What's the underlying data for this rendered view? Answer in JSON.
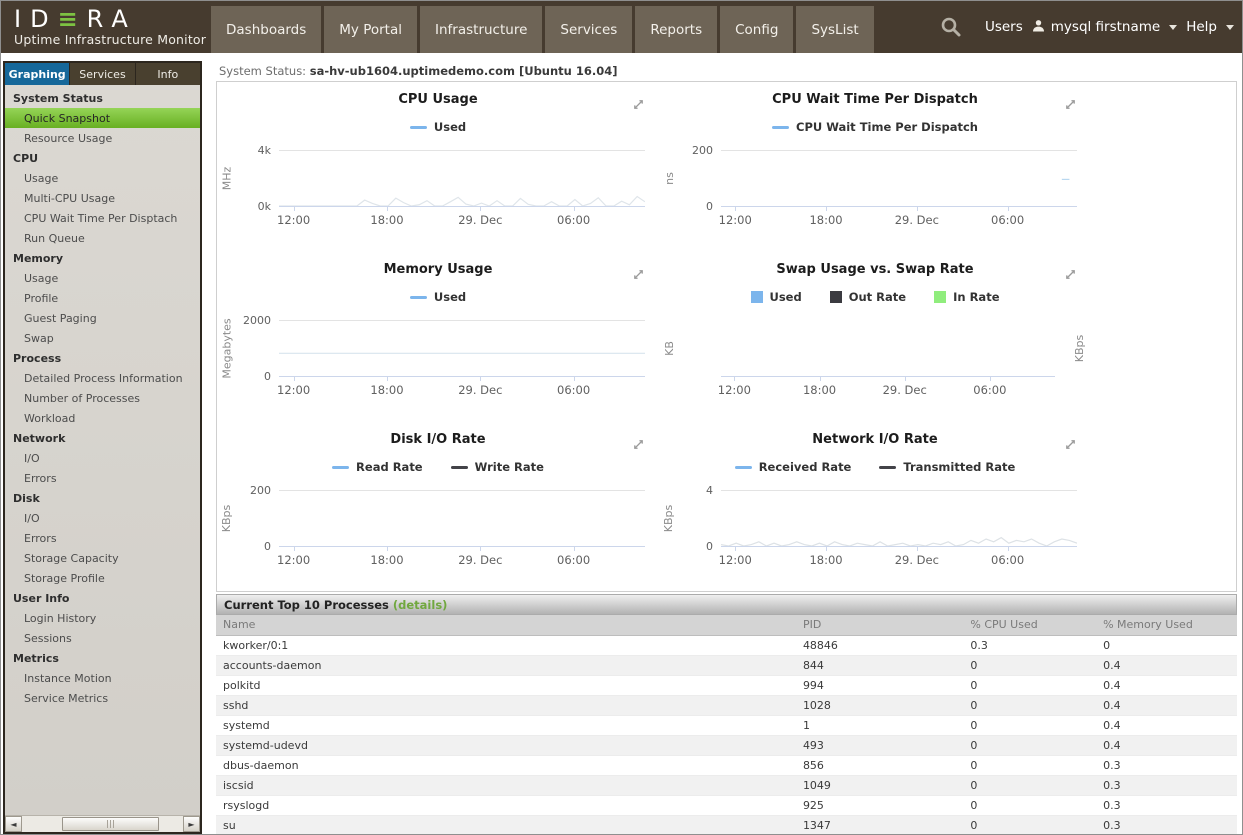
{
  "header": {
    "logo": {
      "brand": "IDERA",
      "subtitle": "Uptime Infrastructure Monitor"
    },
    "nav": [
      "Dashboards",
      "My Portal",
      "Infrastructure",
      "Services",
      "Reports",
      "Config",
      "SysList"
    ],
    "right": {
      "users_label": "Users",
      "user_name": "mysql firstname",
      "help_label": "Help"
    }
  },
  "sidebar": {
    "tabs": [
      {
        "label": "Graphing",
        "active": true
      },
      {
        "label": "Services",
        "active": false
      },
      {
        "label": "Info",
        "active": false
      }
    ],
    "sections": [
      {
        "title": "System Status",
        "items": [
          {
            "label": "Quick Snapshot",
            "selected": true
          },
          {
            "label": "Resource Usage"
          }
        ]
      },
      {
        "title": "CPU",
        "items": [
          {
            "label": "Usage"
          },
          {
            "label": "Multi-CPU Usage"
          },
          {
            "label": "CPU Wait Time Per Disptach"
          },
          {
            "label": "Run Queue"
          }
        ]
      },
      {
        "title": "Memory",
        "items": [
          {
            "label": "Usage"
          },
          {
            "label": "Profile"
          },
          {
            "label": "Guest Paging"
          },
          {
            "label": "Swap"
          }
        ]
      },
      {
        "title": "Process",
        "items": [
          {
            "label": "Detailed Process Information"
          },
          {
            "label": "Number of Processes"
          },
          {
            "label": "Workload"
          }
        ]
      },
      {
        "title": "Network",
        "items": [
          {
            "label": "I/O"
          },
          {
            "label": "Errors"
          }
        ]
      },
      {
        "title": "Disk",
        "items": [
          {
            "label": "I/O"
          },
          {
            "label": "Errors"
          },
          {
            "label": "Storage Capacity"
          },
          {
            "label": "Storage Profile"
          }
        ]
      },
      {
        "title": "User Info",
        "items": [
          {
            "label": "Login History"
          },
          {
            "label": "Sessions"
          }
        ]
      },
      {
        "title": "Metrics",
        "items": [
          {
            "label": "Instance Motion"
          },
          {
            "label": "Service Metrics"
          }
        ]
      }
    ]
  },
  "main": {
    "status_label": "System Status:",
    "status_value": "sa-hv-ub1604.uptimedemo.com [Ubuntu 16.04]"
  },
  "chart_data": [
    {
      "type": "line",
      "title": "CPU Usage",
      "ylabel": "MHz",
      "yticks": [
        "4k",
        "0k"
      ],
      "ylim": [
        0,
        4000
      ],
      "xticks": [
        "12:00",
        "18:00",
        "29. Dec",
        "06:00"
      ],
      "grid_top": true,
      "legend": [
        {
          "label": "Used",
          "color": "#7cb5ec",
          "marker": "line"
        }
      ],
      "series": [
        {
          "name": "Used",
          "color": "#7cb5ec",
          "render_color": "#dfe5ea",
          "values": [
            0,
            0,
            0,
            0,
            0,
            0,
            0,
            0,
            0,
            0,
            0,
            420,
            180,
            0,
            0,
            560,
            240,
            0,
            90,
            380,
            0,
            0,
            300,
            620,
            140,
            0,
            210,
            0,
            380,
            0,
            0,
            540,
            120,
            0,
            0,
            310,
            0,
            0,
            460,
            0,
            180,
            590,
            0,
            0,
            340,
            90,
            680,
            300
          ]
        }
      ]
    },
    {
      "type": "line",
      "title": "CPU Wait Time Per Dispatch",
      "ylabel": "ns",
      "yticks": [
        "200",
        "0"
      ],
      "ylim": [
        0,
        200
      ],
      "xticks": [
        "12:00",
        "18:00",
        "29. Dec",
        "06:00"
      ],
      "grid_top": true,
      "legend": [
        {
          "label": "CPU Wait Time Per Dispatch",
          "color": "#7cb5ec",
          "marker": "line"
        }
      ],
      "series": [
        {
          "name": "CPU Wait Time Per Dispatch",
          "color": "#7cb5ec",
          "render_color": "#b9d8f0",
          "values": [
            null,
            null,
            null,
            null,
            null,
            null,
            null,
            null,
            null,
            null,
            null,
            null,
            null,
            null,
            null,
            null,
            null,
            null,
            null,
            null,
            null,
            null,
            null,
            null,
            null,
            null,
            null,
            null,
            null,
            null,
            null,
            null,
            null,
            null,
            null,
            null,
            null,
            null,
            null,
            null,
            null,
            null,
            null,
            null,
            null,
            95,
            95,
            null
          ]
        }
      ]
    },
    {
      "type": "line",
      "title": "Memory Usage",
      "ylabel": "Megabytes",
      "yticks": [
        "2000",
        "0"
      ],
      "ylim": [
        0,
        2000
      ],
      "xticks": [
        "12:00",
        "18:00",
        "29. Dec",
        "06:00"
      ],
      "grid_top": true,
      "legend": [
        {
          "label": "Used",
          "color": "#7cb5ec",
          "marker": "line"
        }
      ],
      "series": [
        {
          "name": "Used",
          "color": "#7cb5ec",
          "render_color": "#d8e4ee",
          "values": [
            810,
            810
          ]
        }
      ]
    },
    {
      "type": "area",
      "title": "Swap Usage vs. Swap Rate",
      "ylabel": "KB",
      "ylabel_right": "KBps",
      "yticks": [],
      "ylim": [
        0,
        1
      ],
      "xticks": [
        "12:00",
        "18:00",
        "29. Dec",
        "06:00"
      ],
      "grid_top": false,
      "legend": [
        {
          "label": "Used",
          "color": "#7cb5ec",
          "marker": "square"
        },
        {
          "label": "Out Rate",
          "color": "#3b3b40",
          "marker": "square"
        },
        {
          "label": "In Rate",
          "color": "#90ed7d",
          "marker": "square"
        }
      ],
      "series": [
        {
          "name": "Used",
          "color": "#7cb5ec",
          "values": []
        },
        {
          "name": "Out Rate",
          "color": "#3b3b40",
          "values": []
        },
        {
          "name": "In Rate",
          "color": "#90ed7d",
          "values": []
        }
      ]
    },
    {
      "type": "line",
      "title": "Disk I/O Rate",
      "ylabel": "KBps",
      "yticks": [
        "200",
        "0"
      ],
      "ylim": [
        0,
        200
      ],
      "xticks": [
        "12:00",
        "18:00",
        "29. Dec",
        "06:00"
      ],
      "grid_top": true,
      "legend": [
        {
          "label": "Read Rate",
          "color": "#7cb5ec",
          "marker": "line"
        },
        {
          "label": "Write Rate",
          "color": "#434348",
          "marker": "line"
        }
      ],
      "series": [
        {
          "name": "Read Rate",
          "color": "#7cb5ec",
          "values": []
        },
        {
          "name": "Write Rate",
          "color": "#434348",
          "values": []
        }
      ]
    },
    {
      "type": "line",
      "title": "Network I/O Rate",
      "ylabel": "KBps",
      "yticks": [
        "4",
        "0"
      ],
      "ylim": [
        0,
        4
      ],
      "xticks": [
        "12:00",
        "18:00",
        "29. Dec",
        "06:00"
      ],
      "grid_top": true,
      "legend": [
        {
          "label": "Received Rate",
          "color": "#7cb5ec",
          "marker": "line"
        },
        {
          "label": "Transmitted Rate",
          "color": "#434348",
          "marker": "line"
        }
      ],
      "series": [
        {
          "name": "Received Rate",
          "color": "#7cb5ec",
          "render_color": "#dde2e6",
          "values": [
            0.1,
            0,
            0.2,
            0,
            0.1,
            0.3,
            0,
            0.2,
            0,
            0.1,
            0.3,
            0.1,
            0,
            0.2,
            0,
            0.3,
            0.1,
            0,
            0.2,
            0.1,
            0,
            0.3,
            0,
            0.1,
            0.2,
            0,
            0.1,
            0,
            0.2,
            0.1,
            0.3,
            0,
            0.1,
            0.4,
            0.2,
            0.5,
            0.3,
            0.6,
            0.2,
            0.4,
            0.3,
            0.5,
            0.2,
            0,
            0.3,
            0.5,
            0.4,
            0.2
          ]
        },
        {
          "name": "Transmitted Rate",
          "color": "#434348",
          "values": []
        }
      ]
    }
  ],
  "processes": {
    "title": "Current Top 10 Processes",
    "details_label": "(details)",
    "columns": [
      "Name",
      "PID",
      "% CPU Used",
      "% Memory Used"
    ],
    "rows": [
      [
        "kworker/0:1",
        "48846",
        "0.3",
        "0"
      ],
      [
        "accounts-daemon",
        "844",
        "0",
        "0.4"
      ],
      [
        "polkitd",
        "994",
        "0",
        "0.4"
      ],
      [
        "sshd",
        "1028",
        "0",
        "0.4"
      ],
      [
        "systemd",
        "1",
        "0",
        "0.4"
      ],
      [
        "systemd-udevd",
        "493",
        "0",
        "0.4"
      ],
      [
        "dbus-daemon",
        "856",
        "0",
        "0.3"
      ],
      [
        "iscsid",
        "1049",
        "0",
        "0.3"
      ],
      [
        "rsyslogd",
        "925",
        "0",
        "0.3"
      ],
      [
        "su",
        "1347",
        "0",
        "0.3"
      ]
    ]
  },
  "colors": {
    "header_brown": "#463b2f",
    "nav_brown": "#6e6456",
    "tab_active_blue": "#16689a",
    "selected_green": "#76bb2a",
    "link_green": "#71a83f",
    "chart_blue": "#7cb5ec",
    "chart_dark": "#434348",
    "chart_green": "#90ed7d"
  }
}
